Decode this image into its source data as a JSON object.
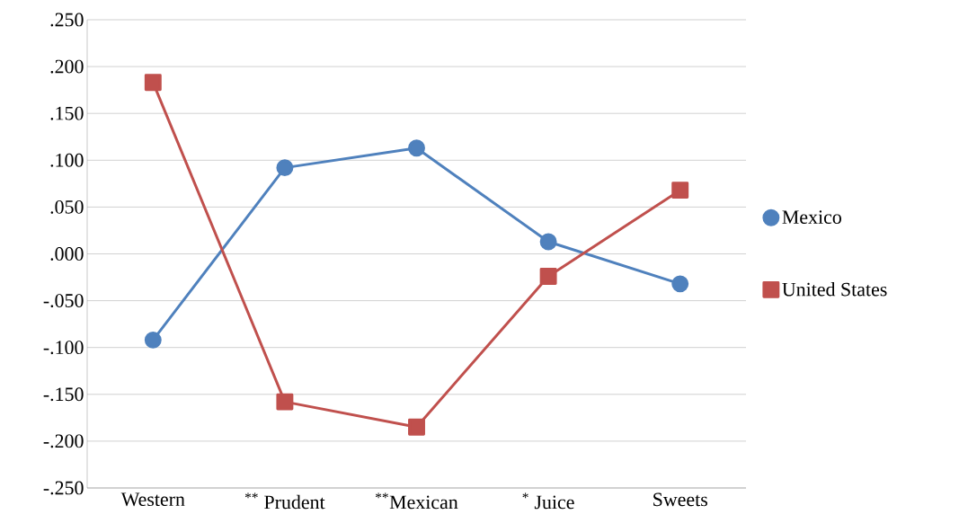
{
  "chart_data": {
    "type": "line",
    "categories": [
      "Western",
      "$^{**}$ Prudent",
      "$^{**}$Mexican",
      "$^{*}$ Juice",
      "Sweets"
    ],
    "series": [
      {
        "name": "Mexico",
        "color": "#4f81bd",
        "marker": "circle",
        "values": [
          -0.092,
          0.092,
          0.113,
          0.013,
          -0.032
        ]
      },
      {
        "name": "United States",
        "color": "#c0504d",
        "marker": "square",
        "values": [
          0.183,
          -0.158,
          -0.185,
          -0.024,
          0.068
        ]
      }
    ],
    "ylim": [
      -0.25,
      0.25
    ],
    "yticks": [
      {
        "value": -0.25,
        "label": "-.250"
      },
      {
        "value": -0.2,
        "label": "-.200"
      },
      {
        "value": -0.15,
        "label": "-.150"
      },
      {
        "value": -0.1,
        "label": "-.100"
      },
      {
        "value": -0.05,
        "label": "-.050"
      },
      {
        "value": 0,
        "label": ".000"
      },
      {
        "value": 0.05,
        "label": ".050"
      },
      {
        "value": 0.1,
        "label": ".100"
      },
      {
        "value": 0.15,
        "label": ".150"
      },
      {
        "value": 0.2,
        "label": ".200"
      },
      {
        "value": 0.25,
        "label": ".250"
      }
    ],
    "grid": "y",
    "legend": "right",
    "line_style": "solid"
  }
}
